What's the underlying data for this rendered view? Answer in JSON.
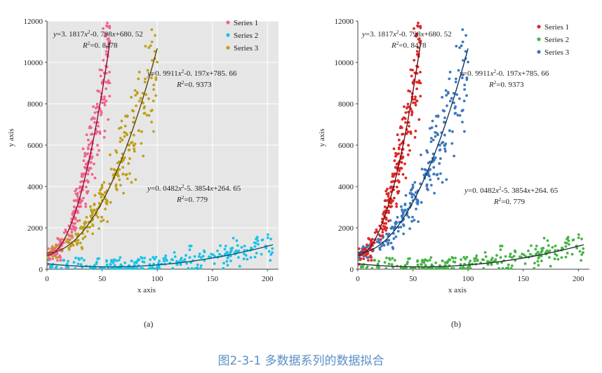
{
  "caption": "图2-3-1  多数据系列的数据拟合",
  "chart_data": [
    {
      "type": "scatter",
      "label": "(a)",
      "xlabel": "x axis",
      "ylabel": "y axis",
      "xlim": [
        0,
        210
      ],
      "ylim": [
        0,
        12000
      ],
      "xticks": [
        0,
        50,
        100,
        150,
        200
      ],
      "yticks": [
        0,
        2000,
        4000,
        6000,
        8000,
        10000,
        12000
      ],
      "background": "#e6e6e6",
      "grid": true,
      "legend_position": "top-right",
      "series": [
        {
          "name": "Series 1",
          "color": "#f0648c",
          "fit_color": "#8c0a2e",
          "fit": {
            "a": 3.1817,
            "b": -0.798,
            "c": 680.52
          },
          "x_range": [
            0,
            57
          ],
          "n": 250,
          "equation": "y=3. 1817x2-0. 798x+680. 52",
          "r2": "R2=0. 8478"
        },
        {
          "name": "Series 2",
          "color": "#19c3e6",
          "fit_color": "#0a5a78",
          "fit": {
            "a": 0.0482,
            "b": -5.3854,
            "c": 264.65
          },
          "x_range": [
            0,
            205
          ],
          "n": 250,
          "equation": "y=0. 0482x2-5. 3854x+264. 65",
          "r2": "R2=0. 779"
        },
        {
          "name": "Series 3",
          "color": "#bea019",
          "fit_color": "#5a460a",
          "fit": {
            "a": 0.9911,
            "b": -0.197,
            "c": 785.66
          },
          "x_range": [
            0,
            100
          ],
          "n": 250,
          "equation": "y=0. 9911x2-0. 197x+785. 66",
          "r2": "R2=0. 9373"
        }
      ]
    },
    {
      "type": "scatter",
      "label": "(b)",
      "xlabel": "x axis",
      "ylabel": "y axis",
      "xlim": [
        0,
        210
      ],
      "ylim": [
        0,
        12000
      ],
      "xticks": [
        0,
        50,
        100,
        150,
        200
      ],
      "yticks": [
        0,
        2000,
        4000,
        6000,
        8000,
        10000,
        12000
      ],
      "background": "#ffffff",
      "grid": false,
      "legend_position": "top-right",
      "series": [
        {
          "name": "Series 1",
          "color": "#dc2828",
          "fit_color": "#6e0a14",
          "fit": {
            "a": 3.1817,
            "b": -0.798,
            "c": 680.52
          },
          "x_range": [
            0,
            57
          ],
          "n": 250,
          "equation": "y=3. 1817x2-0. 798x+680. 52",
          "r2": "R2=0. 8478"
        },
        {
          "name": "Series 2",
          "color": "#46b446",
          "fit_color": "#2d2d3c",
          "fit": {
            "a": 0.0482,
            "b": -5.3854,
            "c": 264.65
          },
          "x_range": [
            0,
            205
          ],
          "n": 250,
          "equation": "y=0. 0482x2-5. 3854x+264. 65",
          "r2": "R2=0. 779"
        },
        {
          "name": "Series 3",
          "color": "#3c78be",
          "fit_color": "#14375a",
          "fit": {
            "a": 0.9911,
            "b": -0.197,
            "c": 785.66
          },
          "x_range": [
            0,
            100
          ],
          "n": 250,
          "equation": "y=0. 9911x2-0. 197x+785. 66",
          "r2": "R2=0. 9373"
        }
      ]
    }
  ]
}
